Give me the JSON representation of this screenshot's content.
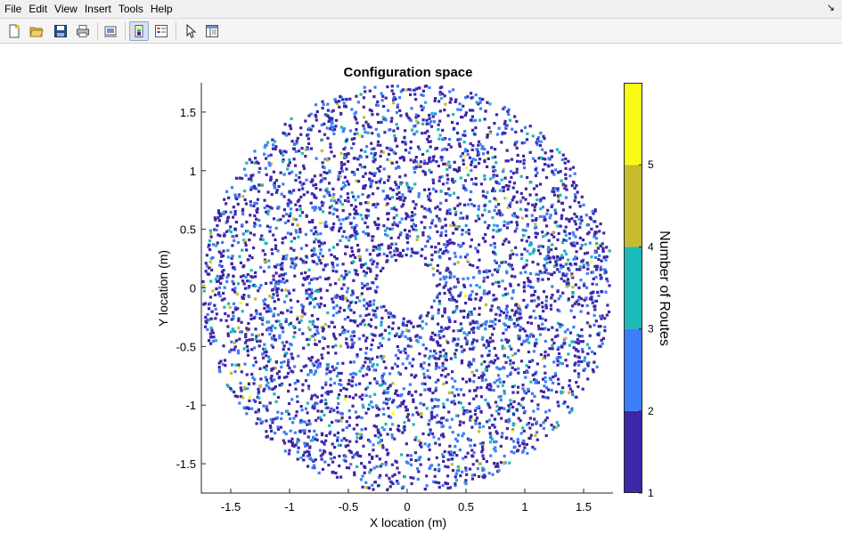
{
  "window": {
    "menu": [
      "File",
      "Edit",
      "View",
      "Insert",
      "Tools",
      "Help"
    ],
    "menu_arrow": "↘",
    "toolbar_icons": [
      "new-figure-icon",
      "open-file-icon",
      "save-icon",
      "print-icon",
      "link-plot-icon",
      "colorbar-toggle-icon",
      "legend-toggle-icon",
      "pointer-icon",
      "property-inspector-icon"
    ]
  },
  "colors": {
    "route_1": "#3e26a8",
    "route_2": "#3c7ef7",
    "route_3": "#1cb9b9",
    "route_4": "#c4bc2e",
    "route_5": "#f9fb14"
  },
  "chart_data": {
    "type": "scatter",
    "title": "Configuration space",
    "xlabel": "X location (m)",
    "ylabel": "Y location (m)",
    "xlim": [
      -1.75,
      1.75
    ],
    "ylim": [
      -1.75,
      1.75
    ],
    "xticks": [
      -1.5,
      -1,
      -0.5,
      0,
      0.5,
      1,
      1.5
    ],
    "yticks": [
      -1.5,
      -1,
      -0.5,
      0,
      0.5,
      1,
      1.5
    ],
    "xtick_labels": [
      "-1.5",
      "-1",
      "-0.5",
      "0",
      "0.5",
      "1",
      "1.5"
    ],
    "ytick_labels": [
      "-1.5",
      "-1",
      "-0.5",
      "0",
      "0.5",
      "1",
      "1.5"
    ],
    "grid": false,
    "region": {
      "shape": "annulus",
      "center": [
        0,
        0
      ],
      "inner_radius": 0.25,
      "outer_radius": 1.75
    },
    "approx_point_count": 4500,
    "color_fraction": {
      "1": 0.62,
      "2": 0.26,
      "3": 0.09,
      "4": 0.025,
      "5": 0.005
    },
    "colorbar": {
      "label": "Number of Routes",
      "range": [
        1,
        6
      ],
      "ticks": [
        1,
        2,
        3,
        4,
        5
      ],
      "tick_labels": [
        "1",
        "2",
        "3",
        "4",
        "5"
      ],
      "levels": [
        {
          "from": 1,
          "to": 2,
          "value": 1
        },
        {
          "from": 2,
          "to": 3,
          "value": 2
        },
        {
          "from": 3,
          "to": 4,
          "value": 3
        },
        {
          "from": 4,
          "to": 5,
          "value": 4
        },
        {
          "from": 5,
          "to": 6,
          "value": 5
        }
      ]
    }
  }
}
